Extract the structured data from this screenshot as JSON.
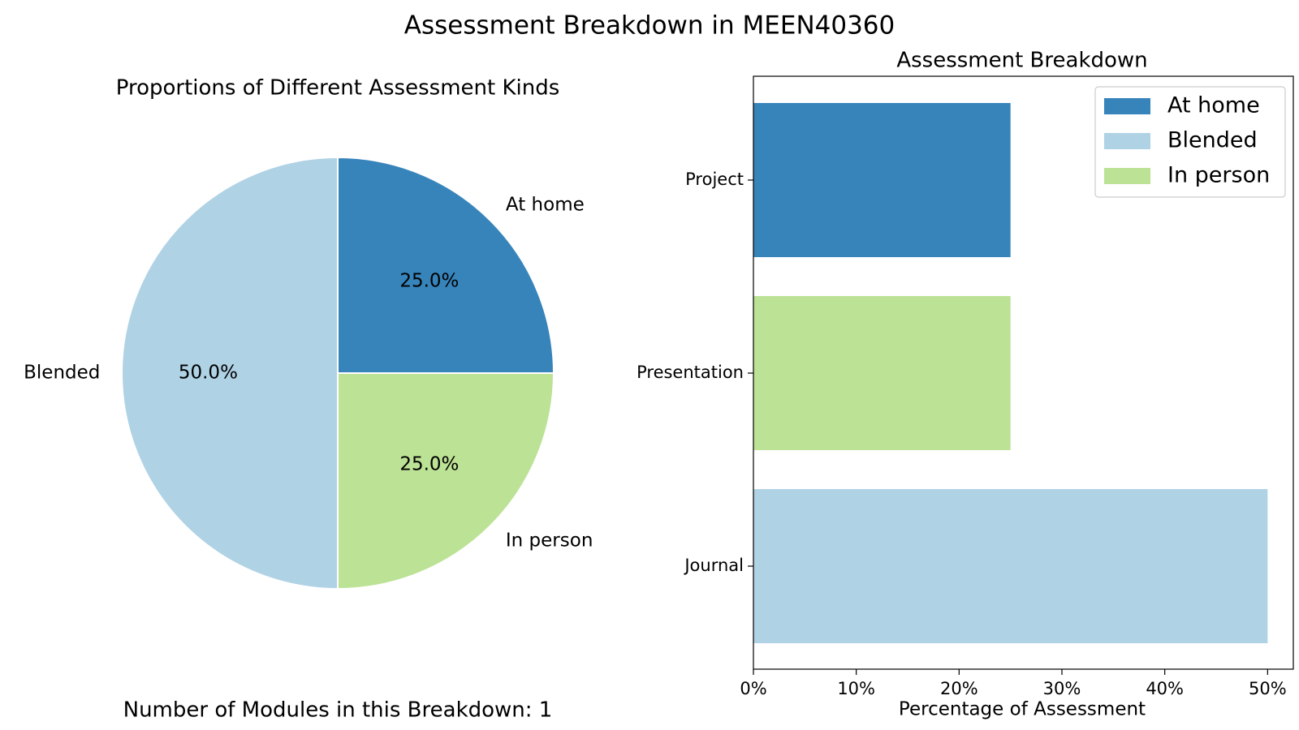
{
  "figure": {
    "title": "Assessment Breakdown in MEEN40360",
    "footnote": "Number of Modules in this Breakdown: 1"
  },
  "colors": {
    "At home": "#3784bb",
    "Blended": "#afd2e5",
    "In person": "#bce295"
  },
  "chart_data": [
    {
      "type": "pie",
      "title": "Proportions of Different Assessment Kinds",
      "slices": [
        {
          "label": "At home",
          "value": 25.0,
          "pct_label": "25.0%",
          "color": "#3784bb"
        },
        {
          "label": "In person",
          "value": 25.0,
          "pct_label": "25.0%",
          "color": "#bce295"
        },
        {
          "label": "Blended",
          "value": 50.0,
          "pct_label": "50.0%",
          "color": "#afd2e5"
        }
      ],
      "start_angle_deg": 90,
      "direction": "clockwise"
    },
    {
      "type": "bar",
      "orientation": "horizontal",
      "title": "Assessment Breakdown",
      "xlabel": "Percentage of Assessment",
      "ylabel": "",
      "categories": [
        "Project",
        "Presentation",
        "Journal"
      ],
      "values": [
        25,
        25,
        50
      ],
      "bar_kinds": [
        "At home",
        "In person",
        "Blended"
      ],
      "xlim": [
        0,
        52.5
      ],
      "xticks": [
        0,
        10,
        20,
        30,
        40,
        50
      ],
      "xtick_labels": [
        "0%",
        "10%",
        "20%",
        "30%",
        "40%",
        "50%"
      ],
      "grid": false,
      "legend": {
        "placement": "top-right",
        "entries": [
          {
            "label": "At home",
            "color": "#3784bb"
          },
          {
            "label": "Blended",
            "color": "#afd2e5"
          },
          {
            "label": "In person",
            "color": "#bce295"
          }
        ]
      }
    }
  ]
}
